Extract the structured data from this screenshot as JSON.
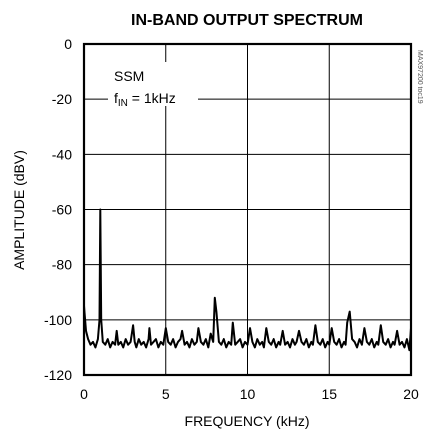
{
  "chart_data": {
    "type": "line",
    "title": "IN-BAND OUTPUT SPECTRUM",
    "xlabel": "FREQUENCY (kHz)",
    "ylabel": "AMPLITUDE (dBV)",
    "xlim": [
      0,
      20
    ],
    "ylim": [
      -120,
      0
    ],
    "x_ticks": [
      "0",
      "5",
      "10",
      "15",
      "20"
    ],
    "y_ticks": [
      "0",
      "-20",
      "-40",
      "-60",
      "-80",
      "-100",
      "-120"
    ],
    "grid": true,
    "annotation": {
      "line1": "SSM",
      "line2_prefix": "f",
      "line2_sub": "IN",
      "line2_suffix": " = 1kHz"
    },
    "side_label": "MAX97200 toc19",
    "series": [
      {
        "x": [
          0.0,
          0.12,
          0.25,
          0.4,
          0.55,
          0.7,
          0.85,
          0.95,
          1.0,
          1.05,
          1.15,
          1.3,
          1.45,
          1.6,
          1.75,
          1.9,
          2.0,
          2.1,
          2.25,
          2.4,
          2.55,
          2.7,
          2.85,
          3.0,
          3.1,
          3.2,
          3.35,
          3.5,
          3.65,
          3.8,
          3.95,
          4.0,
          4.1,
          4.25,
          4.4,
          4.55,
          4.7,
          4.85,
          5.0,
          5.15,
          5.3,
          5.45,
          5.6,
          5.75,
          5.9,
          6.0,
          6.15,
          6.3,
          6.45,
          6.6,
          6.75,
          6.9,
          7.0,
          7.15,
          7.3,
          7.45,
          7.6,
          7.75,
          7.9,
          8.0,
          8.1,
          8.25,
          8.4,
          8.55,
          8.7,
          8.85,
          9.0,
          9.1,
          9.25,
          9.4,
          9.55,
          9.7,
          9.85,
          10.0,
          10.15,
          10.3,
          10.45,
          10.6,
          10.75,
          10.9,
          11.0,
          11.15,
          11.3,
          11.45,
          11.6,
          11.75,
          11.9,
          12.0,
          12.15,
          12.3,
          12.45,
          12.6,
          12.75,
          12.9,
          13.0,
          13.15,
          13.3,
          13.45,
          13.6,
          13.75,
          13.9,
          14.0,
          14.15,
          14.3,
          14.45,
          14.6,
          14.75,
          14.9,
          15.0,
          15.15,
          15.3,
          15.45,
          15.6,
          15.75,
          15.9,
          16.0,
          16.1,
          16.25,
          16.4,
          16.55,
          16.7,
          16.85,
          17.0,
          17.15,
          17.3,
          17.45,
          17.6,
          17.75,
          17.9,
          18.0,
          18.15,
          18.3,
          18.45,
          18.6,
          18.75,
          18.9,
          19.0,
          19.15,
          19.3,
          19.45,
          19.6,
          19.75,
          19.9,
          20.0
        ],
        "y": [
          -95,
          -104,
          -107,
          -109,
          -108,
          -110,
          -107,
          -100,
          -60,
          -100,
          -108,
          -109,
          -107,
          -110,
          -108,
          -109,
          -104,
          -109,
          -108,
          -110,
          -107,
          -109,
          -108,
          -102,
          -108,
          -110,
          -107,
          -109,
          -108,
          -110,
          -107,
          -103,
          -109,
          -108,
          -107,
          -110,
          -108,
          -109,
          -103,
          -108,
          -109,
          -107,
          -110,
          -108,
          -107,
          -104,
          -109,
          -108,
          -110,
          -107,
          -109,
          -108,
          -103,
          -108,
          -109,
          -107,
          -110,
          -105,
          -108,
          -92,
          -97,
          -108,
          -109,
          -107,
          -110,
          -108,
          -109,
          -101,
          -109,
          -108,
          -107,
          -110,
          -108,
          -109,
          -103,
          -108,
          -110,
          -107,
          -109,
          -108,
          -110,
          -103,
          -108,
          -109,
          -107,
          -110,
          -108,
          -109,
          -104,
          -109,
          -108,
          -110,
          -107,
          -109,
          -108,
          -104,
          -108,
          -109,
          -107,
          -110,
          -108,
          -109,
          -102,
          -108,
          -109,
          -107,
          -110,
          -108,
          -109,
          -103,
          -108,
          -109,
          -107,
          -110,
          -108,
          -109,
          -101,
          -97,
          -107,
          -108,
          -110,
          -107,
          -109,
          -103,
          -108,
          -109,
          -107,
          -110,
          -108,
          -109,
          -102,
          -108,
          -109,
          -107,
          -110,
          -108,
          -109,
          -104,
          -109,
          -108,
          -110,
          -107,
          -111,
          -103
        ]
      }
    ]
  }
}
